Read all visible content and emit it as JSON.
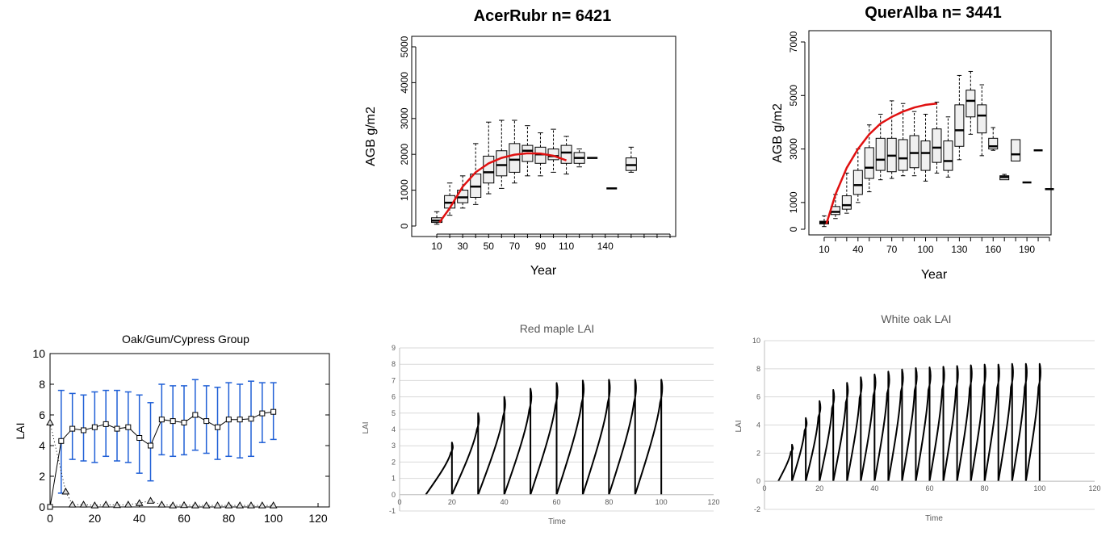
{
  "colors": {
    "fit": "#e01010",
    "errorbar": "#1f5fd6",
    "line": "#000000"
  },
  "chart_data": [
    {
      "type": "box",
      "title": "AcerRubr n= 6421",
      "xlabel": "Year",
      "ylabel": "AGB g/m2",
      "xlim": [
        0,
        190
      ],
      "ylim": [
        0,
        5000
      ],
      "xticks": [
        10,
        30,
        50,
        70,
        90,
        110,
        140
      ],
      "yticks": [
        0,
        1000,
        2000,
        3000,
        4000,
        5000
      ],
      "boxes": [
        {
          "x": 10,
          "lo": 50,
          "q1": 100,
          "med": 150,
          "q3": 230,
          "hi": 400
        },
        {
          "x": 20,
          "lo": 300,
          "q1": 500,
          "med": 650,
          "q3": 850,
          "hi": 1200
        },
        {
          "x": 30,
          "lo": 500,
          "q1": 650,
          "med": 800,
          "q3": 1000,
          "hi": 1400
        },
        {
          "x": 40,
          "lo": 600,
          "q1": 800,
          "med": 1100,
          "q3": 1450,
          "hi": 2300
        },
        {
          "x": 50,
          "lo": 900,
          "q1": 1200,
          "med": 1500,
          "q3": 1950,
          "hi": 2900
        },
        {
          "x": 60,
          "lo": 1050,
          "q1": 1400,
          "med": 1700,
          "q3": 2100,
          "hi": 2950
        },
        {
          "x": 70,
          "lo": 1200,
          "q1": 1500,
          "med": 1850,
          "q3": 2300,
          "hi": 2950
        },
        {
          "x": 80,
          "lo": 1400,
          "q1": 1800,
          "med": 2100,
          "q3": 2250,
          "hi": 2800
        },
        {
          "x": 90,
          "lo": 1400,
          "q1": 1750,
          "med": 2000,
          "q3": 2200,
          "hi": 2600
        },
        {
          "x": 100,
          "lo": 1500,
          "q1": 1850,
          "med": 1950,
          "q3": 2150,
          "hi": 2700
        },
        {
          "x": 110,
          "lo": 1450,
          "q1": 1750,
          "med": 2050,
          "q3": 2250,
          "hi": 2500
        },
        {
          "x": 120,
          "lo": 1650,
          "q1": 1750,
          "med": 1900,
          "q3": 2050,
          "hi": 2150
        },
        {
          "x": 130,
          "lo": 1900,
          "q1": 1900,
          "med": 1900,
          "q3": 1900,
          "hi": 1900
        },
        {
          "x": 145,
          "lo": 1050,
          "q1": 1050,
          "med": 1050,
          "q3": 1050,
          "hi": 1050
        },
        {
          "x": 160,
          "lo": 1500,
          "q1": 1550,
          "med": 1700,
          "q3": 1900,
          "hi": 2200
        }
      ],
      "fit": [
        [
          12,
          100
        ],
        [
          20,
          500
        ],
        [
          30,
          1100
        ],
        [
          40,
          1500
        ],
        [
          50,
          1750
        ],
        [
          60,
          1900
        ],
        [
          70,
          1990
        ],
        [
          80,
          2030
        ],
        [
          90,
          2020
        ],
        [
          100,
          1960
        ],
        [
          110,
          1830
        ]
      ]
    },
    {
      "type": "box",
      "title": "QuerAlba n= 3441",
      "xlabel": "Year",
      "ylabel": "AGB g/m2",
      "xlim": [
        0,
        210
      ],
      "ylim": [
        0,
        7000
      ],
      "xticks": [
        10,
        40,
        70,
        100,
        130,
        160,
        190
      ],
      "yticks": [
        0,
        1000,
        3000,
        5000,
        7000
      ],
      "boxes": [
        {
          "x": 10,
          "lo": 100,
          "q1": 200,
          "med": 250,
          "q3": 300,
          "hi": 500
        },
        {
          "x": 20,
          "lo": 400,
          "q1": 550,
          "med": 650,
          "q3": 850,
          "hi": 1300
        },
        {
          "x": 30,
          "lo": 600,
          "q1": 750,
          "med": 900,
          "q3": 1250,
          "hi": 2100
        },
        {
          "x": 40,
          "lo": 1000,
          "q1": 1300,
          "med": 1650,
          "q3": 2200,
          "hi": 3000
        },
        {
          "x": 50,
          "lo": 1400,
          "q1": 1900,
          "med": 2300,
          "q3": 3050,
          "hi": 3900
        },
        {
          "x": 60,
          "lo": 1850,
          "q1": 2200,
          "med": 2600,
          "q3": 3400,
          "hi": 4300
        },
        {
          "x": 70,
          "lo": 1900,
          "q1": 2150,
          "med": 2750,
          "q3": 3400,
          "hi": 4800
        },
        {
          "x": 80,
          "lo": 2000,
          "q1": 2200,
          "med": 2650,
          "q3": 3350,
          "hi": 4700
        },
        {
          "x": 90,
          "lo": 2000,
          "q1": 2300,
          "med": 2850,
          "q3": 3500,
          "hi": 4400
        },
        {
          "x": 100,
          "lo": 1800,
          "q1": 2200,
          "med": 2850,
          "q3": 3300,
          "hi": 4300
        },
        {
          "x": 110,
          "lo": 2100,
          "q1": 2500,
          "med": 3050,
          "q3": 3750,
          "hi": 4750
        },
        {
          "x": 120,
          "lo": 1950,
          "q1": 2200,
          "med": 2550,
          "q3": 3300,
          "hi": 4200
        },
        {
          "x": 130,
          "lo": 2600,
          "q1": 3100,
          "med": 3700,
          "q3": 4650,
          "hi": 5750
        },
        {
          "x": 140,
          "lo": 3550,
          "q1": 4200,
          "med": 4800,
          "q3": 5200,
          "hi": 5900
        },
        {
          "x": 150,
          "lo": 2750,
          "q1": 3600,
          "med": 4250,
          "q3": 4650,
          "hi": 5400
        },
        {
          "x": 160,
          "lo": 2950,
          "q1": 3000,
          "med": 3100,
          "q3": 3400,
          "hi": 3800
        },
        {
          "x": 170,
          "lo": 1850,
          "q1": 1850,
          "med": 1950,
          "q3": 2000,
          "hi": 2050
        },
        {
          "x": 180,
          "lo": 2550,
          "q1": 2550,
          "med": 2800,
          "q3": 3350,
          "hi": 3350
        },
        {
          "x": 190,
          "lo": 1750,
          "q1": 1750,
          "med": 1750,
          "q3": 1750,
          "hi": 1750
        },
        {
          "x": 200,
          "lo": 2950,
          "q1": 2950,
          "med": 2950,
          "q3": 2950,
          "hi": 2950
        },
        {
          "x": 210,
          "lo": 1500,
          "q1": 1500,
          "med": 1500,
          "q3": 1500,
          "hi": 1500
        }
      ],
      "fit": [
        [
          12,
          200
        ],
        [
          20,
          1300
        ],
        [
          30,
          2300
        ],
        [
          40,
          3000
        ],
        [
          50,
          3550
        ],
        [
          60,
          3950
        ],
        [
          70,
          4200
        ],
        [
          80,
          4400
        ],
        [
          90,
          4550
        ],
        [
          100,
          4650
        ],
        [
          110,
          4700
        ]
      ]
    },
    {
      "type": "line",
      "title": "Oak/Gum/Cypress Group",
      "xlabel": "",
      "ylabel": "LAI",
      "xlim": [
        0,
        125
      ],
      "ylim": [
        0,
        10
      ],
      "xticks": [
        0,
        20,
        40,
        60,
        80,
        100,
        120
      ],
      "yticks": [
        0,
        2,
        4,
        6,
        8,
        10
      ],
      "series": [
        {
          "marker": "square",
          "x": [
            0,
            5,
            10,
            15,
            20,
            25,
            30,
            35,
            40,
            45,
            50,
            55,
            60,
            65,
            70,
            75,
            80,
            85,
            90,
            95,
            100
          ],
          "values": [
            0,
            4.3,
            5.1,
            5.0,
            5.2,
            5.4,
            5.1,
            5.2,
            4.5,
            4.0,
            5.7,
            5.6,
            5.5,
            6.0,
            5.6,
            5.2,
            5.7,
            5.7,
            5.75,
            6.1,
            6.2
          ],
          "lo": [
            0,
            0.9,
            3.1,
            3.0,
            2.9,
            3.3,
            3.0,
            2.9,
            2.2,
            1.7,
            3.4,
            3.3,
            3.4,
            3.7,
            3.5,
            3.1,
            3.3,
            3.2,
            3.3,
            4.2,
            4.4
          ],
          "hi": [
            0,
            7.6,
            7.4,
            7.3,
            7.5,
            7.6,
            7.6,
            7.5,
            7.3,
            6.8,
            8.0,
            7.9,
            7.9,
            8.3,
            7.9,
            7.8,
            8.1,
            8.0,
            8.2,
            8.1,
            8.1
          ]
        },
        {
          "marker": "triangle",
          "x": [
            0,
            7,
            10,
            15,
            20,
            25,
            30,
            35,
            40,
            45,
            50,
            55,
            60,
            65,
            70,
            75,
            80,
            85,
            90,
            95,
            100
          ],
          "values": [
            5.5,
            1.0,
            0.15,
            0.15,
            0.1,
            0.15,
            0.12,
            0.15,
            0.25,
            0.4,
            0.15,
            0.1,
            0.12,
            0.1,
            0.1,
            0.1,
            0.1,
            0.1,
            0.1,
            0.1,
            0.1
          ]
        }
      ]
    },
    {
      "type": "line",
      "title": "Red maple LAI",
      "xlabel": "Time",
      "ylabel": "LAI",
      "xlim": [
        0,
        120
      ],
      "ylim": [
        -1,
        9
      ],
      "xticks": [
        0,
        20,
        40,
        60,
        80,
        100,
        120
      ],
      "yticks": [
        -1,
        0,
        1,
        2,
        3,
        4,
        5,
        6,
        7,
        8,
        9
      ],
      "cycle_starts": [
        10,
        20,
        30,
        40,
        50,
        60,
        70,
        80,
        90
      ],
      "cycle_length": 10,
      "cycle_peaks": [
        3.2,
        5.0,
        6.0,
        6.5,
        6.85,
        7.0,
        7.05,
        7.05,
        7.05
      ]
    },
    {
      "type": "line",
      "title": "White oak LAI",
      "xlabel": "Time",
      "ylabel": "LAI",
      "xlim": [
        0,
        120
      ],
      "ylim": [
        -2,
        10
      ],
      "xticks": [
        0,
        20,
        40,
        60,
        80,
        100,
        120
      ],
      "yticks": [
        -2,
        0,
        2,
        4,
        6,
        8,
        10
      ],
      "cycle_starts": [
        5,
        10,
        15,
        20,
        25,
        30,
        35,
        40,
        45,
        50,
        55,
        60,
        65,
        70,
        75,
        80,
        85,
        90,
        95
      ],
      "cycle_length": 5,
      "cycle_peaks": [
        2.6,
        4.5,
        5.7,
        6.5,
        7.0,
        7.4,
        7.6,
        7.8,
        7.95,
        8.05,
        8.1,
        8.15,
        8.2,
        8.25,
        8.3,
        8.3,
        8.35,
        8.35,
        8.35
      ]
    }
  ]
}
